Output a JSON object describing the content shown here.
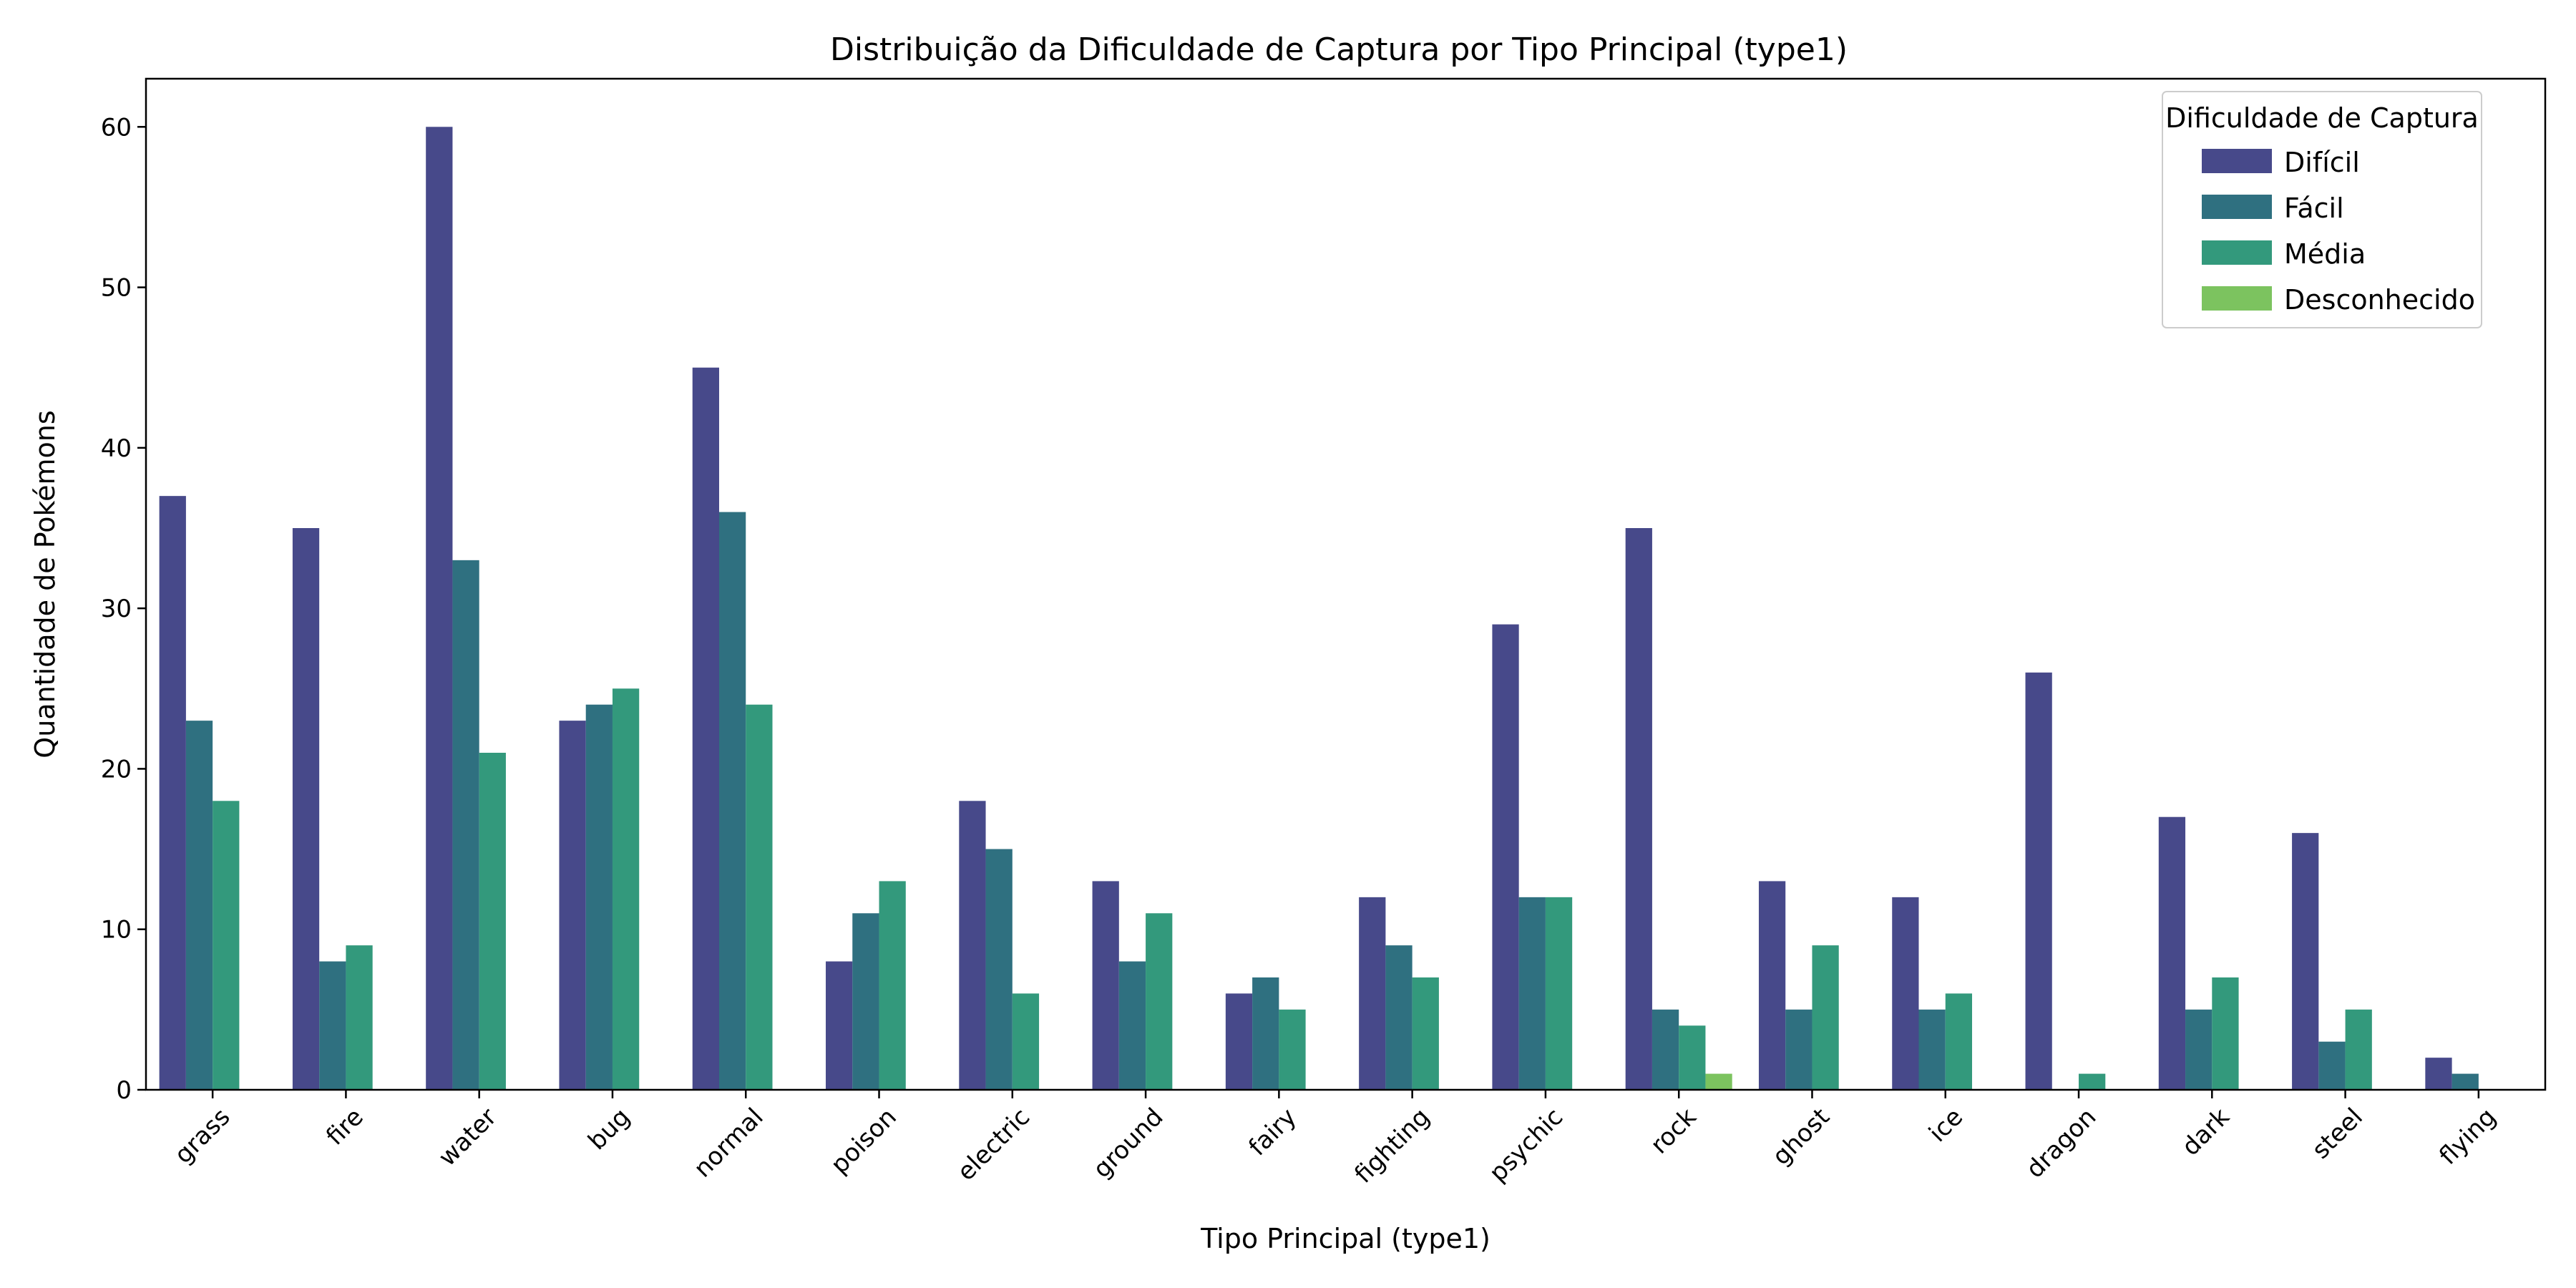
{
  "chart_data": {
    "type": "bar",
    "title": "Distribuição da Dificuldade de Captura por Tipo Principal (type1)",
    "xlabel": "Tipo Principal (type1)",
    "ylabel": "Quantidade de Pokémons",
    "ylim": [
      0,
      63
    ],
    "yticks": [
      0,
      10,
      20,
      30,
      40,
      50,
      60
    ],
    "grid": false,
    "legend": {
      "title": "Dificuldade de Captura",
      "placement": "top-right"
    },
    "categories": [
      "grass",
      "fire",
      "water",
      "bug",
      "normal",
      "poison",
      "electric",
      "ground",
      "fairy",
      "fighting",
      "psychic",
      "rock",
      "ghost",
      "ice",
      "dragon",
      "dark",
      "steel",
      "flying"
    ],
    "series": [
      {
        "name": "Difícil",
        "color": "#47498a",
        "values": [
          37,
          35,
          60,
          23,
          45,
          8,
          18,
          13,
          6,
          12,
          29,
          35,
          13,
          12,
          26,
          17,
          16,
          2
        ]
      },
      {
        "name": "Fácil",
        "color": "#2f7080",
        "values": [
          23,
          8,
          33,
          24,
          36,
          11,
          15,
          8,
          7,
          9,
          12,
          5,
          5,
          5,
          0,
          5,
          3,
          1
        ]
      },
      {
        "name": "Média",
        "color": "#33997c",
        "values": [
          18,
          9,
          21,
          25,
          24,
          13,
          6,
          11,
          5,
          7,
          12,
          4,
          9,
          6,
          1,
          7,
          5,
          0
        ]
      },
      {
        "name": "Desconhecido",
        "color": "#7cc35f",
        "values": [
          0,
          0,
          0,
          0,
          0,
          0,
          0,
          0,
          0,
          0,
          0,
          1,
          0,
          0,
          0,
          0,
          0,
          0
        ]
      }
    ]
  }
}
